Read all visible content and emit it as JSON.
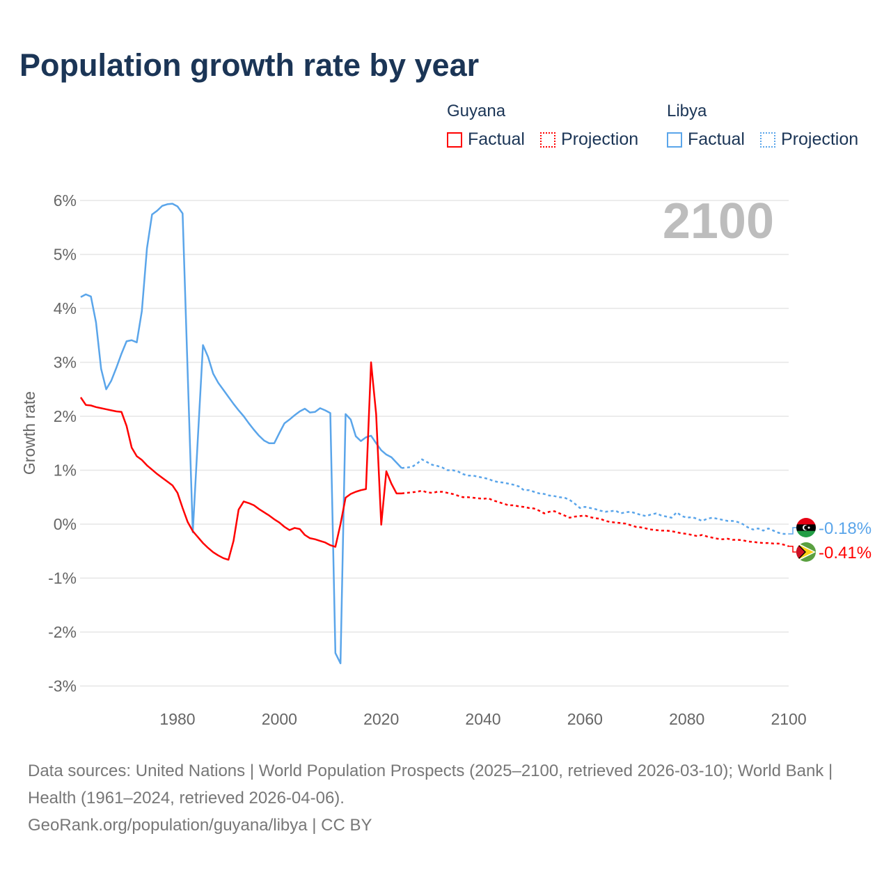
{
  "title": "Population growth rate by year",
  "legend": {
    "groups": [
      {
        "name": "Guyana",
        "factual": "Factual",
        "projection": "Projection",
        "color": "#ff0000"
      },
      {
        "name": "Libya",
        "factual": "Factual",
        "projection": "Projection",
        "color": "#5aa5ea"
      }
    ]
  },
  "footer": {
    "sources": "Data sources: United Nations | World Population Prospects (2025–2100, retrieved 2026-03-10); World Bank | Health (1961–2024, retrieved 2026-04-06).",
    "credit": "GeoRank.org/population/guyana/libya | CC BY"
  },
  "chart_data": {
    "type": "line",
    "title": "Population growth rate by year",
    "ylabel": "Growth rate",
    "xlabel": "",
    "year_watermark": "2100",
    "xlim": [
      1961,
      2100
    ],
    "ylim": [
      -3,
      6
    ],
    "yticks": [
      -3,
      -2,
      -1,
      0,
      1,
      2,
      3,
      4,
      5,
      6
    ],
    "ytick_labels": [
      "-3%",
      "-2%",
      "-1%",
      "0%",
      "1%",
      "2%",
      "3%",
      "4%",
      "5%",
      "6%"
    ],
    "xticks": [
      1980,
      2000,
      2020,
      2040,
      2060,
      2080,
      2100
    ],
    "xtick_labels": [
      "1980",
      "2000",
      "2020",
      "2040",
      "2060",
      "2080",
      "2100"
    ],
    "grid": true,
    "legend_position": "top-right",
    "series": [
      {
        "name": "Libya",
        "color": "#5aa5ea",
        "end_label": "-0.18%",
        "factual_start": 1961,
        "factual": [
          4.21,
          4.26,
          4.22,
          3.74,
          2.88,
          2.5,
          2.66,
          2.9,
          3.16,
          3.39,
          3.41,
          3.37,
          3.95,
          5.11,
          5.74,
          5.81,
          5.9,
          5.93,
          5.94,
          5.89,
          5.76,
          2.8,
          -0.15,
          1.6,
          3.32,
          3.1,
          2.79,
          2.62,
          2.49,
          2.36,
          2.23,
          2.11,
          2.0,
          1.87,
          1.75,
          1.64,
          1.55,
          1.5,
          1.5,
          1.69,
          1.87,
          1.94,
          2.02,
          2.09,
          2.14,
          2.07,
          2.08,
          2.15,
          2.11,
          2.06,
          -2.39,
          -2.58,
          2.04,
          1.94,
          1.63,
          1.54,
          1.61,
          1.64,
          1.5,
          1.37,
          1.29,
          1.24,
          1.14,
          1.04
        ],
        "projection_start": 2025,
        "projection": [
          1.05,
          1.06,
          1.12,
          1.2,
          1.15,
          1.1,
          1.08,
          1.05,
          1.0,
          1.0,
          0.98,
          0.93,
          0.9,
          0.9,
          0.88,
          0.86,
          0.84,
          0.8,
          0.78,
          0.77,
          0.75,
          0.73,
          0.7,
          0.63,
          0.63,
          0.6,
          0.57,
          0.56,
          0.53,
          0.52,
          0.5,
          0.49,
          0.45,
          0.38,
          0.3,
          0.32,
          0.3,
          0.28,
          0.25,
          0.23,
          0.24,
          0.25,
          0.2,
          0.22,
          0.23,
          0.2,
          0.17,
          0.15,
          0.18,
          0.2,
          0.16,
          0.14,
          0.12,
          0.22,
          0.15,
          0.12,
          0.13,
          0.1,
          0.06,
          0.1,
          0.12,
          0.1,
          0.08,
          0.06,
          0.06,
          0.04,
          0.0,
          -0.06,
          -0.1,
          -0.08,
          -0.12,
          -0.08,
          -0.12,
          -0.16,
          -0.18,
          -0.18
        ]
      },
      {
        "name": "Guyana",
        "color": "#ff0000",
        "end_label": "-0.41%",
        "factual_start": 1961,
        "factual": [
          2.35,
          2.21,
          2.2,
          2.17,
          2.15,
          2.13,
          2.11,
          2.09,
          2.08,
          1.82,
          1.42,
          1.26,
          1.19,
          1.09,
          1.01,
          0.93,
          0.86,
          0.79,
          0.72,
          0.58,
          0.3,
          0.04,
          -0.13,
          -0.24,
          -0.35,
          -0.44,
          -0.52,
          -0.58,
          -0.63,
          -0.66,
          -0.31,
          0.27,
          0.42,
          0.39,
          0.35,
          0.28,
          0.22,
          0.16,
          0.09,
          0.03,
          -0.05,
          -0.11,
          -0.07,
          -0.09,
          -0.2,
          -0.26,
          -0.28,
          -0.31,
          -0.34,
          -0.39,
          -0.42,
          0.0,
          0.49,
          0.56,
          0.6,
          0.63,
          0.65,
          3.0,
          2.04,
          -0.01,
          0.98,
          0.75,
          0.57,
          0.57
        ],
        "projection_start": 2025,
        "projection": [
          0.58,
          0.59,
          0.6,
          0.62,
          0.59,
          0.58,
          0.6,
          0.6,
          0.58,
          0.56,
          0.53,
          0.5,
          0.5,
          0.49,
          0.48,
          0.47,
          0.48,
          0.44,
          0.41,
          0.38,
          0.35,
          0.35,
          0.33,
          0.32,
          0.3,
          0.29,
          0.25,
          0.2,
          0.23,
          0.24,
          0.2,
          0.16,
          0.12,
          0.14,
          0.15,
          0.16,
          0.13,
          0.11,
          0.1,
          0.06,
          0.04,
          0.03,
          0.02,
          0.01,
          -0.02,
          -0.05,
          -0.06,
          -0.08,
          -0.1,
          -0.11,
          -0.12,
          -0.12,
          -0.13,
          -0.15,
          -0.17,
          -0.18,
          -0.2,
          -0.22,
          -0.2,
          -0.23,
          -0.25,
          -0.27,
          -0.28,
          -0.27,
          -0.29,
          -0.29,
          -0.3,
          -0.32,
          -0.33,
          -0.34,
          -0.35,
          -0.35,
          -0.36,
          -0.36,
          -0.38,
          -0.41
        ]
      }
    ]
  }
}
